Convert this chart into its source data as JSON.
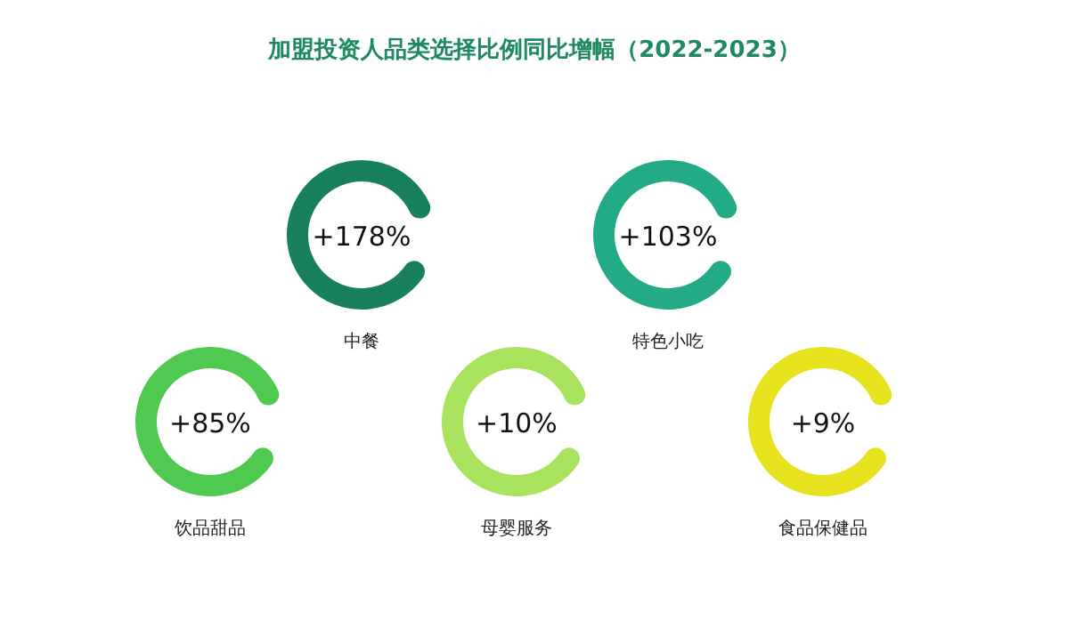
{
  "chart_data": {
    "type": "other",
    "title": "加盟投资人品类选择比例同比增幅（2022-2023）",
    "categories": [
      "中餐",
      "特色小吃",
      "饮品甜品",
      "母婴服务",
      "食品保健品"
    ],
    "values": [
      178,
      103,
      85,
      10,
      9
    ],
    "value_labels": [
      "+178%",
      "+103%",
      "+85%",
      "+10%",
      "+9%"
    ],
    "colors": [
      "#18805a",
      "#22ab86",
      "#4fc94f",
      "#a9e25c",
      "#e6e21e"
    ]
  }
}
